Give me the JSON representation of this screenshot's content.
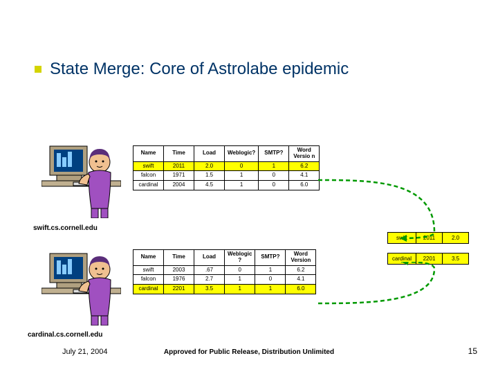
{
  "title": "State Merge: Core of Astrolabe epidemic",
  "captions": {
    "top": "swift.cs.cornell.edu",
    "bottom": "cardinal.cs.cornell.edu"
  },
  "table1": {
    "headers": [
      "Name",
      "Time",
      "Load",
      "Weblogic?",
      "SMTP?",
      "Word Versio n"
    ],
    "rows": [
      {
        "hili": true,
        "cells": [
          "swift",
          "2011",
          "2.0",
          "0",
          "1",
          "6.2"
        ]
      },
      {
        "hili": false,
        "cells": [
          "falcon",
          "1971",
          "1.5",
          "1",
          "0",
          "4.1"
        ]
      },
      {
        "hili": false,
        "cells": [
          "cardinal",
          "2004",
          "4.5",
          "1",
          "0",
          "6.0"
        ]
      }
    ]
  },
  "table2": {
    "headers": [
      "Name",
      "Time",
      "Load",
      "Weblogic ?",
      "SMTP?",
      "Word Version"
    ],
    "rows": [
      {
        "hili": false,
        "cells": [
          "swift",
          "2003",
          ".67",
          "0",
          "1",
          "6.2"
        ]
      },
      {
        "hili": false,
        "cells": [
          "falcon",
          "1976",
          "2.7",
          "1",
          "0",
          "4.1"
        ]
      },
      {
        "hili": true,
        "cells": [
          "cardinal",
          "2201",
          "3.5",
          "1",
          "1",
          "6.0"
        ]
      }
    ]
  },
  "side": {
    "rows": [
      {
        "hili": true,
        "cells": [
          "swift",
          "2011",
          "2.0"
        ]
      },
      {
        "hili": true,
        "cells": [
          "cardinal",
          "2201",
          "3.5"
        ]
      }
    ]
  },
  "footer": {
    "date": "July 21, 2004",
    "center": "Approved for Public Release, Distribution Unlimited",
    "page": "15"
  },
  "colors": {
    "arrow": "#009900"
  }
}
